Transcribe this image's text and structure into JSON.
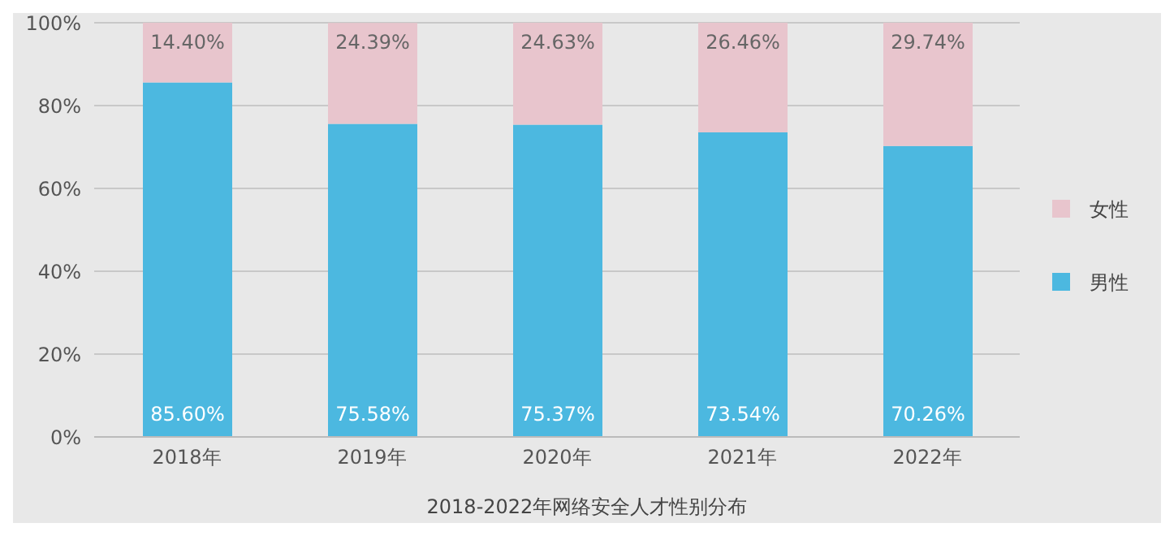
{
  "chart_data": {
    "type": "bar",
    "stacked": true,
    "title": "2018-2022年网络安全人才性别分布",
    "categories": [
      "2018年",
      "2019年",
      "2020年",
      "2021年",
      "2022年"
    ],
    "series": [
      {
        "name": "男性",
        "color": "#4cb8e0",
        "values": [
          85.6,
          75.58,
          75.37,
          73.54,
          70.26
        ],
        "value_labels": [
          "85.60%",
          "75.58%",
          "75.37%",
          "73.54%",
          "70.26%"
        ]
      },
      {
        "name": "女性",
        "color": "#e8c5cd",
        "values": [
          14.4,
          24.39,
          24.63,
          26.46,
          29.74
        ],
        "value_labels": [
          "14.40%",
          "24.39%",
          "24.63%",
          "26.46%",
          "29.74%"
        ]
      }
    ],
    "ylim": [
      0,
      100
    ],
    "yticks": [
      {
        "value": 0,
        "label": "0%"
      },
      {
        "value": 20,
        "label": "20%"
      },
      {
        "value": 40,
        "label": "40%"
      },
      {
        "value": 60,
        "label": "60%"
      },
      {
        "value": 80,
        "label": "80%"
      },
      {
        "value": 100,
        "label": "100%"
      }
    ],
    "grid": "y",
    "legend": "right"
  }
}
